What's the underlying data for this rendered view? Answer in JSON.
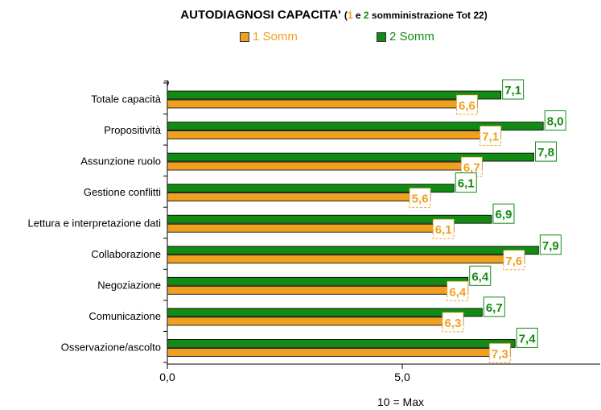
{
  "chart_data": {
    "type": "bar",
    "orientation": "horizontal",
    "title": {
      "main": "AUTODIAGNOSI CAPACITA'",
      "open": "(",
      "n1": "1",
      "mid": " e ",
      "n2": "2",
      "rest": " somministrazione Tot 22)"
    },
    "categories": [
      "Totale capacità",
      "Propositività",
      "Assunzione ruolo",
      "Gestione conflitti",
      "Lettura e interpretazione dati",
      "Collaborazione",
      "Negoziazione",
      "Comunicazione",
      "Osservazione/ascolto"
    ],
    "series": [
      {
        "name": "1 Somm",
        "color": "#f0a020",
        "values": [
          6.6,
          7.1,
          6.7,
          5.6,
          6.1,
          7.6,
          6.4,
          6.3,
          7.3
        ]
      },
      {
        "name": "2 Somm",
        "color": "#138a13",
        "values": [
          7.1,
          8.0,
          7.8,
          6.1,
          6.9,
          7.9,
          6.4,
          6.7,
          7.4
        ]
      }
    ],
    "x_ticks": [
      "0,0",
      "5,0"
    ],
    "xlim": [
      0,
      9.3
    ],
    "xlabel": "10 = Max",
    "legend_position": "top"
  }
}
